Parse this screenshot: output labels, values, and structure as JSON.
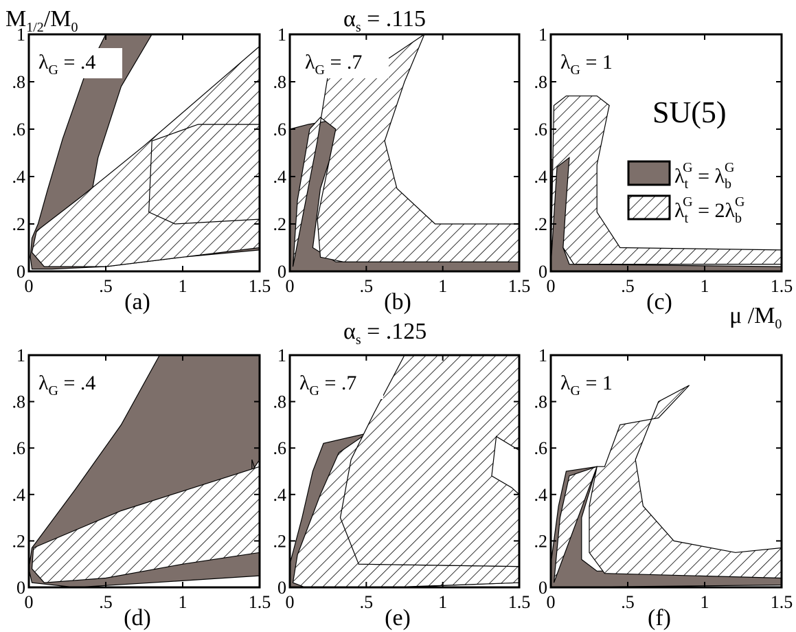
{
  "figure": {
    "y_axis_label_main": "M",
    "y_axis_label_sub": "1/2",
    "y_axis_label_tail": "/M",
    "y_axis_label_tail_sub": "0",
    "x_axis_label_main": "μ /M",
    "x_axis_label_sub": "0",
    "row_titles": [
      {
        "main": "α",
        "sub": "s",
        "value": " = .115"
      },
      {
        "main": "α",
        "sub": "s",
        "value": " = .125"
      }
    ],
    "group_label": "SU(5)",
    "legend": [
      {
        "style": "solid",
        "lhs": "λ",
        "lhs_sub": "t",
        "lhs_sup": "G",
        "eq": " =   λ",
        "rhs_sub": "b",
        "rhs_sup": "G"
      },
      {
        "style": "hatch",
        "lhs": "λ",
        "lhs_sub": "t",
        "lhs_sup": "G",
        "eq": " = 2λ",
        "rhs_sub": "b",
        "rhs_sup": "G"
      }
    ],
    "colors": {
      "solid": "#7d6f6a",
      "hatch": "#000000",
      "frame": "#000000"
    }
  },
  "chart_data": [
    {
      "type": "area",
      "panel": "(a)",
      "lambda_label": "λ",
      "lambda_sub": "G",
      "lambda_value": " = .4",
      "xlim": [
        0,
        1.5
      ],
      "ylim": [
        0,
        1
      ],
      "xticks": [
        "0",
        ".5",
        "1",
        "1.5"
      ],
      "yticks": [
        "0",
        ".2",
        ".4",
        ".6",
        ".8",
        "1"
      ],
      "solid": [
        [
          0.02,
          0.01
        ],
        [
          0.01,
          0.06
        ],
        [
          0.02,
          0.14
        ],
        [
          0.06,
          0.2
        ],
        [
          0.12,
          0.34
        ],
        [
          0.22,
          0.56
        ],
        [
          0.36,
          0.82
        ],
        [
          0.5,
          1
        ],
        [
          0.8,
          1
        ],
        [
          0.6,
          0.78
        ],
        [
          0.45,
          0.48
        ],
        [
          0.4,
          0.3
        ],
        [
          1.5,
          0.22
        ],
        [
          1.5,
          0.09
        ],
        [
          1.0,
          0.06
        ],
        [
          0.5,
          0.02
        ],
        [
          0.15,
          0.01
        ]
      ],
      "hatch": [
        [
          0.02,
          0.08
        ],
        [
          0.05,
          0.17
        ],
        [
          0.35,
          0.32
        ],
        [
          0.75,
          0.53
        ],
        [
          1.5,
          0.95
        ],
        [
          1.5,
          0.22
        ],
        [
          0.95,
          0.2
        ],
        [
          0.78,
          0.25
        ],
        [
          0.8,
          0.55
        ],
        [
          1.1,
          0.62
        ],
        [
          1.5,
          0.62
        ],
        [
          1.5,
          0.1
        ],
        [
          1.0,
          0.06
        ],
        [
          0.5,
          0.02
        ],
        [
          0.1,
          0.02
        ]
      ]
    },
    {
      "type": "area",
      "panel": "(b)",
      "lambda_label": "λ",
      "lambda_sub": "G",
      "lambda_value": " = .7",
      "xlim": [
        0,
        1.5
      ],
      "ylim": [
        0,
        1
      ],
      "xticks": [
        "0",
        ".5",
        "1",
        "1.5"
      ],
      "yticks": [
        "0",
        ".2",
        ".4",
        ".6",
        ".8",
        "1"
      ],
      "solid": [
        [
          0.0,
          0.0
        ],
        [
          0.0,
          0.6
        ],
        [
          0.12,
          0.62
        ],
        [
          0.3,
          0.64
        ],
        [
          0.3,
          0.55
        ],
        [
          0.2,
          0.35
        ],
        [
          0.15,
          0.1
        ],
        [
          0.3,
          0.04
        ],
        [
          1.5,
          0.04
        ],
        [
          1.5,
          0.0
        ]
      ],
      "hatch": [
        [
          0.02,
          0.02
        ],
        [
          0.05,
          0.3
        ],
        [
          0.13,
          0.6
        ],
        [
          0.2,
          0.65
        ],
        [
          0.3,
          0.6
        ],
        [
          0.18,
          0.22
        ],
        [
          0.2,
          0.06
        ],
        [
          0.35,
          0.04
        ],
        [
          1.5,
          0.04
        ],
        [
          1.5,
          0.2
        ],
        [
          0.95,
          0.2
        ],
        [
          0.7,
          0.35
        ],
        [
          0.62,
          0.55
        ],
        [
          0.75,
          0.8
        ],
        [
          0.88,
          1.0
        ],
        [
          0.65,
          0.9
        ],
        [
          0.25,
          0.83
        ],
        [
          0.18,
          0.55
        ]
      ]
    },
    {
      "type": "area",
      "panel": "(c)",
      "lambda_label": "λ",
      "lambda_sub": "G",
      "lambda_value": " = 1",
      "xlim": [
        0,
        1.5
      ],
      "ylim": [
        0,
        1
      ],
      "xticks": [
        "0",
        ".5",
        "1",
        "1.5"
      ],
      "yticks": [
        "0",
        ".2",
        ".4",
        ".6",
        ".8",
        "1"
      ],
      "solid": [
        [
          0.0,
          0.0
        ],
        [
          0.0,
          0.47
        ],
        [
          0.1,
          0.49
        ],
        [
          0.15,
          0.5
        ],
        [
          0.12,
          0.3
        ],
        [
          0.08,
          0.1
        ],
        [
          0.12,
          0.03
        ],
        [
          1.5,
          0.02
        ],
        [
          1.5,
          0.0
        ]
      ],
      "hatch": [
        [
          0.0,
          0.02
        ],
        [
          0.02,
          0.7
        ],
        [
          0.1,
          0.74
        ],
        [
          0.3,
          0.74
        ],
        [
          0.38,
          0.7
        ],
        [
          0.3,
          0.45
        ],
        [
          0.3,
          0.25
        ],
        [
          0.45,
          0.1
        ],
        [
          1.5,
          0.09
        ],
        [
          1.5,
          0.03
        ],
        [
          0.15,
          0.03
        ],
        [
          0.08,
          0.1
        ],
        [
          0.1,
          0.3
        ],
        [
          0.12,
          0.48
        ],
        [
          0.04,
          0.44
        ]
      ]
    },
    {
      "type": "area",
      "panel": "(d)",
      "lambda_label": "λ",
      "lambda_sub": "G",
      "lambda_value": " = .4",
      "xlim": [
        0,
        1.5
      ],
      "ylim": [
        0,
        1
      ],
      "xticks": [
        "0",
        ".5",
        "1",
        "1.5"
      ],
      "yticks": [
        "0",
        ".2",
        ".4",
        ".6",
        ".8",
        "1"
      ],
      "solid": [
        [
          0.02,
          0.02
        ],
        [
          0.0,
          0.08
        ],
        [
          0.02,
          0.17
        ],
        [
          0.3,
          0.42
        ],
        [
          0.6,
          0.7
        ],
        [
          0.85,
          1.0
        ],
        [
          1.5,
          1.0
        ],
        [
          1.5,
          0.55
        ],
        [
          1.45,
          0.5
        ],
        [
          1.45,
          0.55
        ],
        [
          1.5,
          0.45
        ],
        [
          1.5,
          0.05
        ],
        [
          0.8,
          0.02
        ],
        [
          0.3,
          0.0
        ]
      ],
      "hatch": [
        [
          0.02,
          0.08
        ],
        [
          0.03,
          0.17
        ],
        [
          0.6,
          0.33
        ],
        [
          1.5,
          0.52
        ],
        [
          1.5,
          0.15
        ],
        [
          1.0,
          0.1
        ],
        [
          0.5,
          0.04
        ],
        [
          0.1,
          0.02
        ]
      ]
    },
    {
      "type": "area",
      "panel": "(e)",
      "lambda_label": "λ",
      "lambda_sub": "G",
      "lambda_value": " = .7",
      "xlim": [
        0,
        1.5
      ],
      "ylim": [
        0,
        1
      ],
      "xticks": [
        "0",
        ".5",
        "1",
        "1.5"
      ],
      "yticks": [
        "0",
        ".2",
        ".4",
        ".6",
        ".8",
        "1"
      ],
      "solid": [
        [
          0.0,
          0.0
        ],
        [
          0.0,
          0.1
        ],
        [
          0.08,
          0.3
        ],
        [
          0.15,
          0.5
        ],
        [
          0.22,
          0.62
        ],
        [
          0.55,
          0.67
        ],
        [
          0.4,
          0.3
        ],
        [
          0.45,
          0.1
        ],
        [
          1.5,
          0.09
        ],
        [
          1.5,
          0.02
        ],
        [
          0.7,
          0.0
        ]
      ],
      "hatch": [
        [
          0.02,
          0.02
        ],
        [
          0.05,
          0.14
        ],
        [
          0.2,
          0.4
        ],
        [
          0.32,
          0.58
        ],
        [
          0.52,
          0.67
        ],
        [
          0.4,
          0.3
        ],
        [
          0.45,
          0.1
        ],
        [
          1.5,
          0.09
        ],
        [
          1.5,
          0.02
        ],
        [
          0.65,
          0.0
        ],
        [
          0.1,
          0.0
        ]
      ],
      "hatch2": [
        [
          0.45,
          0.1
        ],
        [
          0.33,
          0.3
        ],
        [
          0.4,
          0.55
        ],
        [
          0.55,
          0.75
        ],
        [
          0.75,
          1.0
        ],
        [
          1.5,
          1.0
        ],
        [
          1.5,
          0.59
        ],
        [
          1.35,
          0.65
        ],
        [
          1.32,
          0.48
        ],
        [
          1.45,
          0.43
        ],
        [
          1.5,
          0.4
        ],
        [
          1.5,
          0.09
        ]
      ]
    },
    {
      "type": "area",
      "panel": "(f)",
      "lambda_label": "λ",
      "lambda_sub": "G",
      "lambda_value": " = 1",
      "xlim": [
        0,
        1.5
      ],
      "ylim": [
        0,
        1
      ],
      "xticks": [
        "0",
        ".5",
        "1",
        "1.5"
      ],
      "yticks": [
        "0",
        ".2",
        ".4",
        ".6",
        ".8",
        "1"
      ],
      "solid": [
        [
          0.0,
          0.0
        ],
        [
          0.0,
          0.1
        ],
        [
          0.05,
          0.35
        ],
        [
          0.1,
          0.5
        ],
        [
          0.3,
          0.52
        ],
        [
          0.2,
          0.3
        ],
        [
          0.2,
          0.12
        ],
        [
          0.3,
          0.07
        ],
        [
          1.5,
          0.08
        ],
        [
          1.5,
          0.01
        ]
      ],
      "hatch": [
        [
          0.02,
          0.02
        ],
        [
          0.06,
          0.3
        ],
        [
          0.12,
          0.48
        ],
        [
          0.3,
          0.52
        ],
        [
          0.25,
          0.35
        ],
        [
          0.25,
          0.15
        ],
        [
          0.35,
          0.06
        ],
        [
          1.5,
          0.04
        ],
        [
          1.5,
          0.17
        ],
        [
          1.2,
          0.15
        ],
        [
          0.8,
          0.2
        ],
        [
          0.6,
          0.35
        ],
        [
          0.55,
          0.55
        ],
        [
          0.7,
          0.8
        ],
        [
          0.9,
          0.87
        ],
        [
          0.7,
          0.73
        ],
        [
          0.45,
          0.7
        ],
        [
          0.35,
          0.52
        ],
        [
          0.3,
          0.52
        ]
      ]
    }
  ]
}
